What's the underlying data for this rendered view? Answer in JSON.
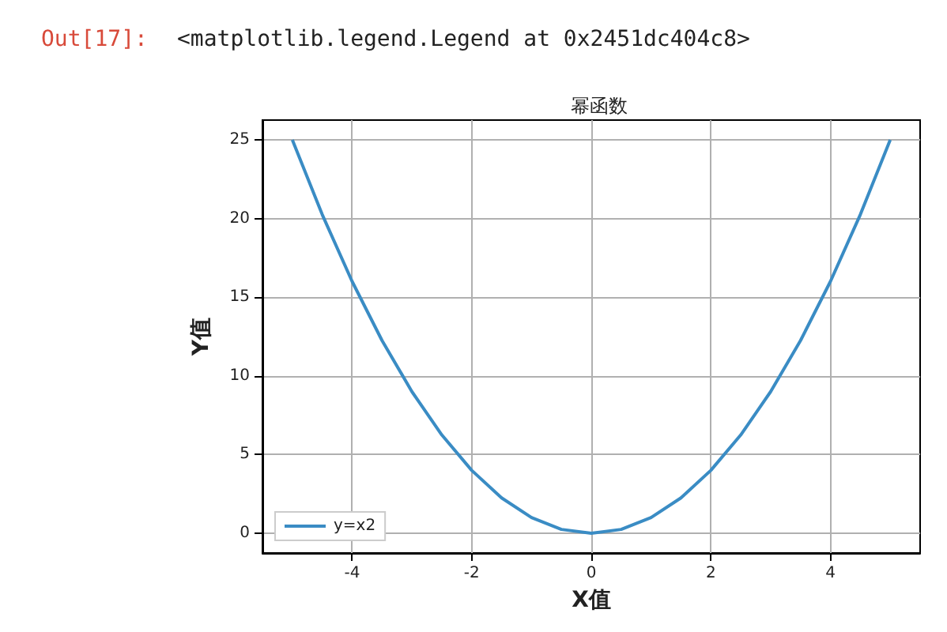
{
  "chart_data": {
    "type": "line",
    "title": "幂函数",
    "xlabel": "X值",
    "ylabel": "Y值",
    "annotations": [
      "Out[17]:",
      "<matplotlib.legend.Legend at 0x2451dc404c8>"
    ],
    "x": [
      -5,
      -4.5,
      -4,
      -3.5,
      -3,
      -2.5,
      -2,
      -1.5,
      -1,
      -0.5,
      0,
      0.5,
      1,
      1.5,
      2,
      2.5,
      3,
      3.5,
      4,
      4.5,
      5
    ],
    "series": [
      {
        "name": "y=x2",
        "color": "#3a8cc4",
        "values": [
          25,
          20.25,
          16,
          12.25,
          9,
          6.25,
          4,
          2.25,
          1,
          0.25,
          0,
          0.25,
          1,
          2.25,
          4,
          6.25,
          9,
          12.25,
          16,
          20.25,
          25
        ]
      }
    ],
    "xlim": [
      -5.5,
      5.5
    ],
    "xticks": [
      -4,
      -2,
      0,
      2,
      4
    ],
    "ylim": [
      -1.25,
      26.25
    ],
    "yticks": [
      0,
      5,
      10,
      15,
      20,
      25
    ],
    "grid": true,
    "legend": "bottom left",
    "marker": "none",
    "line_style": "solid"
  }
}
